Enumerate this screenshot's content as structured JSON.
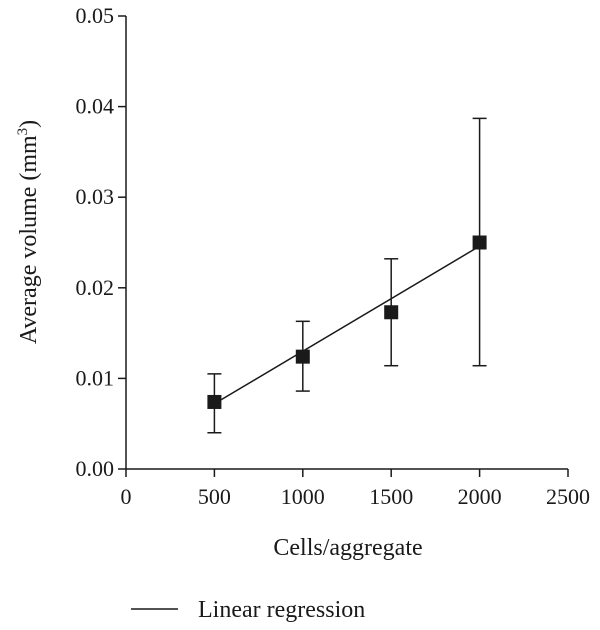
{
  "chart_data": {
    "type": "scatter",
    "title": "",
    "xlabel": "Cells/aggregate",
    "ylabel_main": "Average volume (mm",
    "ylabel_sup": "3",
    "ylabel_close": ")",
    "xlim": [
      0,
      2500
    ],
    "ylim": [
      0,
      0.05
    ],
    "x_ticks": [
      0,
      500,
      1000,
      1500,
      2000,
      2500
    ],
    "x_tick_labels": [
      "0",
      "500",
      "1000",
      "1500",
      "2000",
      "2500"
    ],
    "y_ticks": [
      0,
      0.01,
      0.02,
      0.03,
      0.04,
      0.05
    ],
    "y_tick_labels": [
      "0.00",
      "0.01",
      "0.02",
      "0.03",
      "0.04",
      "0.05"
    ],
    "grid": false,
    "legend_position": "bottom",
    "points": [
      {
        "x": 500,
        "y": 0.0074,
        "err_low": 0.004,
        "err_high": 0.0105
      },
      {
        "x": 1000,
        "y": 0.0124,
        "err_low": 0.0086,
        "err_high": 0.0163
      },
      {
        "x": 1500,
        "y": 0.0173,
        "err_low": 0.0114,
        "err_high": 0.0232
      },
      {
        "x": 2000,
        "y": 0.025,
        "err_low": 0.0114,
        "err_high": 0.0387
      }
    ],
    "regression": {
      "label": "Linear regression",
      "x_start": 500,
      "x_end": 2000,
      "y_start": 0.0072,
      "y_end": 0.0246
    },
    "colors": {
      "marker": "#1a1a1a",
      "line": "#1a1a1a"
    }
  }
}
